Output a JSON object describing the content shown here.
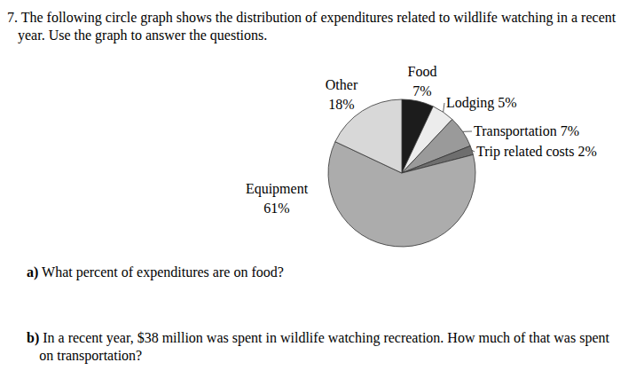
{
  "chart_data": {
    "type": "pie",
    "title": "7. The following circle graph shows the distribution of expenditures related to wildlife watching in a recent year. Use the graph to answer the questions.",
    "annotations": [
      "a) What percent of expenditures are on food?",
      "b) In a recent year, $38 million was spent in wildlife watching recreation. How much of that was spent on transportation?"
    ],
    "categories": [
      "Food",
      "Lodging",
      "Transportation",
      "Trip related costs",
      "Equipment",
      "Other"
    ],
    "values": [
      7,
      5,
      7,
      2,
      61,
      18
    ],
    "value_labels": [
      "7%",
      "5%",
      "7%",
      "2%",
      "61%",
      "18%"
    ],
    "colors": [
      "#1c1c1c",
      "#ececec",
      "#9a9a9a",
      "#6e6e6e",
      "#acacac",
      "#d8d8d8"
    ],
    "data_labels": true
  }
}
